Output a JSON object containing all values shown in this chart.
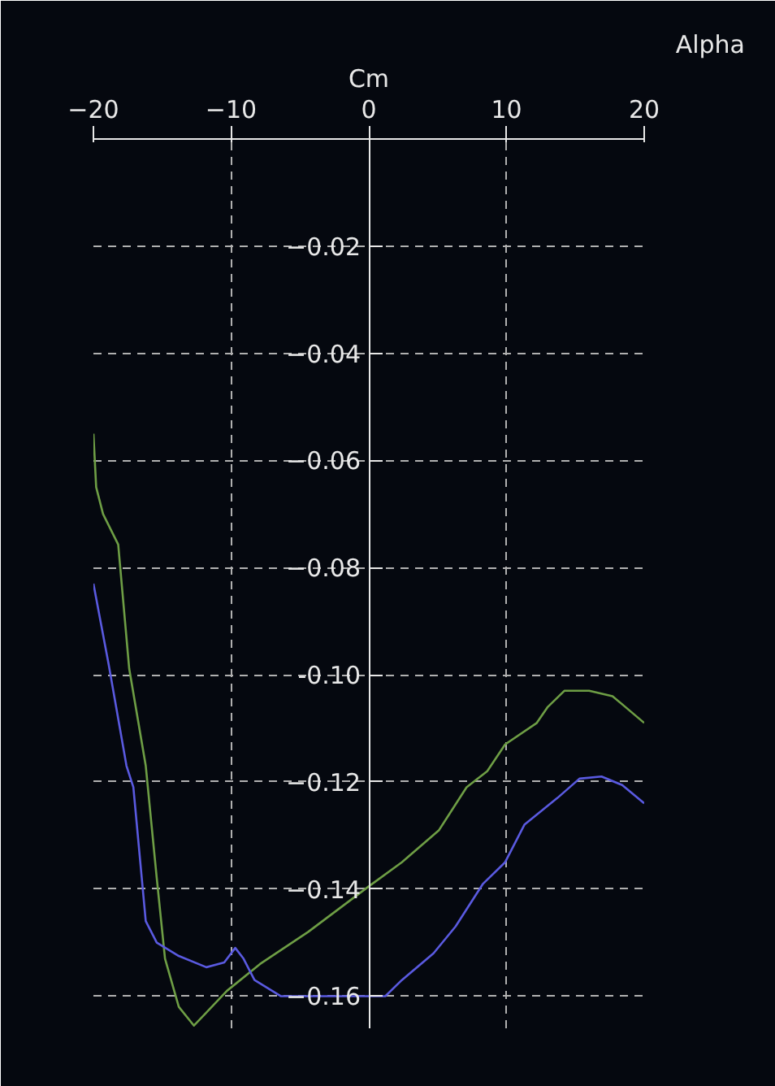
{
  "chart_data": {
    "type": "line",
    "xlabel": "Alpha",
    "ylabel": "Cm",
    "xlim": [
      -20,
      20
    ],
    "ylim": [
      -0.166,
      0
    ],
    "xticks": [
      -20,
      -10,
      0,
      10,
      20
    ],
    "yticks": [
      -0.02,
      -0.04,
      -0.06,
      -0.08,
      {
        "value": -0.1,
        "label": "-0.10"
      },
      -0.12,
      -0.14,
      -0.16
    ],
    "grid": true,
    "line_style": "solid",
    "marker": "none",
    "series": [
      {
        "color": "#6e9e45",
        "x": [
          -20,
          -19.8,
          -19.3,
          -18.2,
          -17.4,
          -16.2,
          -15.4,
          -14.8,
          -13.8,
          -12.7,
          -10.3,
          -7.9,
          -4.4,
          0,
          2.4,
          5.1,
          7.1,
          8.6,
          9.9,
          12.2,
          13,
          14.2,
          16,
          17.7,
          20
        ],
        "values": [
          -0.055,
          -0.065,
          -0.07,
          -0.0757,
          -0.0989,
          -0.117,
          -0.138,
          -0.153,
          -0.162,
          -0.1655,
          -0.159,
          -0.154,
          -0.148,
          -0.1395,
          -0.135,
          -0.129,
          -0.121,
          -0.118,
          -0.113,
          -0.109,
          -0.106,
          -0.103,
          -0.103,
          -0.104,
          -0.109
        ]
      },
      {
        "color": "#5a5ae0",
        "x": [
          -20,
          -18.9,
          -17.6,
          -17.1,
          -16.2,
          -15.4,
          -13.8,
          -11.8,
          -10.5,
          -9.7,
          -9.1,
          -8.3,
          -6.4,
          0,
          1.2,
          2.4,
          4.7,
          6.3,
          8.3,
          9.9,
          11.3,
          13.7,
          15.3,
          16.9,
          18.4,
          20
        ],
        "values": [
          -0.083,
          -0.098,
          -0.117,
          -0.121,
          -0.146,
          -0.15,
          -0.1525,
          -0.1546,
          -0.1537,
          -0.151,
          -0.153,
          -0.157,
          -0.16,
          -0.16,
          -0.16,
          -0.157,
          -0.152,
          -0.147,
          -0.139,
          -0.135,
          -0.128,
          -0.123,
          -0.1194,
          -0.119,
          -0.1206,
          -0.124
        ]
      }
    ]
  }
}
